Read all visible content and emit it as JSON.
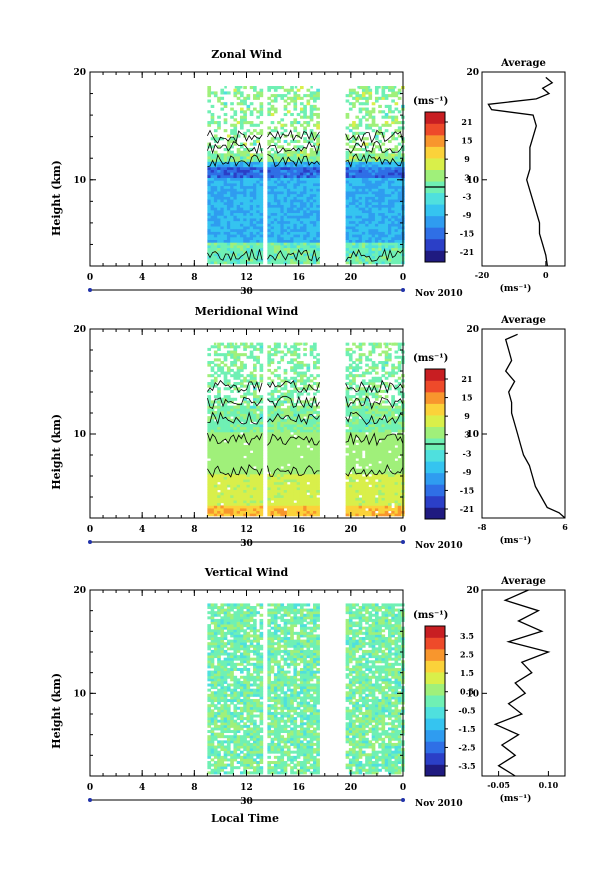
{
  "figure": {
    "time_label": "Local Time"
  },
  "colormap": [
    "#1f1a80",
    "#2b3fc7",
    "#2f6fe6",
    "#2f9cf0",
    "#35c4f0",
    "#4fe0de",
    "#6ff0b4",
    "#a0f07a",
    "#d9ef4a",
    "#fbd23a",
    "#f8962d",
    "#ee4a2a",
    "#c81e22"
  ],
  "chart_data": [
    {
      "type": "heatmap",
      "name": "zonal",
      "title": "Zonal Wind",
      "ylabel": "Height (km)",
      "xlim": [
        0,
        24
      ],
      "ylim": [
        2,
        20
      ],
      "x_ticks": [
        "0",
        "4",
        "8",
        "12",
        "16",
        "20",
        "0"
      ],
      "y_ticks": [
        "20",
        "10"
      ],
      "date_label": "30",
      "month_label": "Nov 2010",
      "colorbar": {
        "unit": "(ms⁻¹)",
        "ticks": [
          "21",
          "15",
          "9",
          "3",
          "-3",
          "-9",
          "-15",
          "-21"
        ],
        "range": [
          -24,
          24
        ]
      },
      "data_segments": [
        [
          9,
          13.2
        ],
        [
          13.6,
          17.6
        ],
        [
          19.6,
          24
        ]
      ],
      "profile": {
        "title": "Average",
        "xlabel": "(ms⁻¹)",
        "x_ticks": [
          "-20",
          "0"
        ],
        "xlim": [
          -20,
          6
        ],
        "heights": [
          2,
          3,
          4,
          5,
          6,
          7,
          8,
          9,
          10,
          11,
          12,
          13,
          14,
          15,
          16,
          16.5,
          17,
          17.5,
          18,
          18.5,
          19,
          19.5
        ],
        "values": [
          0.5,
          0,
          -1,
          -2,
          -2,
          -3,
          -4,
          -5,
          -6,
          -5,
          -5,
          -5,
          -4,
          -3,
          -4,
          -17,
          -18,
          -3,
          1,
          -1,
          2,
          0
        ]
      }
    },
    {
      "type": "heatmap",
      "name": "meridional",
      "title": "Meridional Wind",
      "ylabel": "Height (km)",
      "xlim": [
        0,
        24
      ],
      "ylim": [
        2,
        20
      ],
      "x_ticks": [
        "0",
        "4",
        "8",
        "12",
        "16",
        "20",
        "0"
      ],
      "y_ticks": [
        "20",
        "10"
      ],
      "date_label": "30",
      "month_label": "Nov 2010",
      "colorbar": {
        "unit": "(ms⁻¹)",
        "ticks": [
          "21",
          "15",
          "9",
          "3",
          "-3",
          "-9",
          "-15",
          "-21"
        ],
        "range": [
          -24,
          24
        ]
      },
      "data_segments": [
        [
          9,
          13.2
        ],
        [
          13.6,
          17.6
        ],
        [
          19.6,
          24
        ]
      ],
      "profile": {
        "title": "Average",
        "xlabel": "(ms⁻¹)",
        "x_ticks": [
          "-8",
          "6"
        ],
        "xlim": [
          -8,
          6
        ],
        "heights": [
          2,
          2.5,
          3,
          4,
          5,
          6,
          7,
          8,
          9,
          10,
          11,
          12,
          13,
          14,
          15,
          16,
          17,
          18,
          19,
          19.5
        ],
        "values": [
          6,
          5,
          3,
          2,
          1,
          0.5,
          0,
          -1,
          -1.5,
          -2,
          -2.5,
          -3,
          -3,
          -3.5,
          -2.5,
          -4,
          -3,
          -3.5,
          -4,
          -2
        ]
      }
    },
    {
      "type": "heatmap",
      "name": "vertical",
      "title": "Vertical Wind",
      "ylabel": "Height (km)",
      "xlim": [
        0,
        24
      ],
      "ylim": [
        2,
        20
      ],
      "x_ticks": [
        "0",
        "4",
        "8",
        "12",
        "16",
        "20",
        "0"
      ],
      "y_ticks": [
        "20",
        "10"
      ],
      "date_label": "30",
      "month_label": "Nov 2010",
      "colorbar": {
        "unit": "(ms⁻¹)",
        "ticks": [
          "3.5",
          "2.5",
          "1.5",
          "0.5",
          "-0.5",
          "-1.5",
          "-2.5",
          "-3.5"
        ],
        "range": [
          -4,
          4
        ]
      },
      "data_segments": [
        [
          9,
          13.2
        ],
        [
          13.6,
          17.6
        ],
        [
          19.6,
          24
        ]
      ],
      "profile": {
        "title": "Average",
        "xlabel": "(ms⁻¹)",
        "x_ticks": [
          "-0.05",
          "0.10"
        ],
        "xlim": [
          -0.1,
          0.15
        ],
        "heights": [
          2,
          3,
          4,
          5,
          6,
          7,
          8,
          9,
          10,
          11,
          12,
          13,
          14,
          15,
          16,
          17,
          18,
          19,
          20
        ],
        "values": [
          0.0,
          -0.05,
          0.0,
          -0.04,
          0.01,
          -0.06,
          0.02,
          -0.02,
          0.03,
          0.0,
          0.05,
          0.02,
          0.1,
          -0.02,
          0.08,
          0.01,
          0.07,
          -0.03,
          0.04
        ]
      }
    }
  ]
}
